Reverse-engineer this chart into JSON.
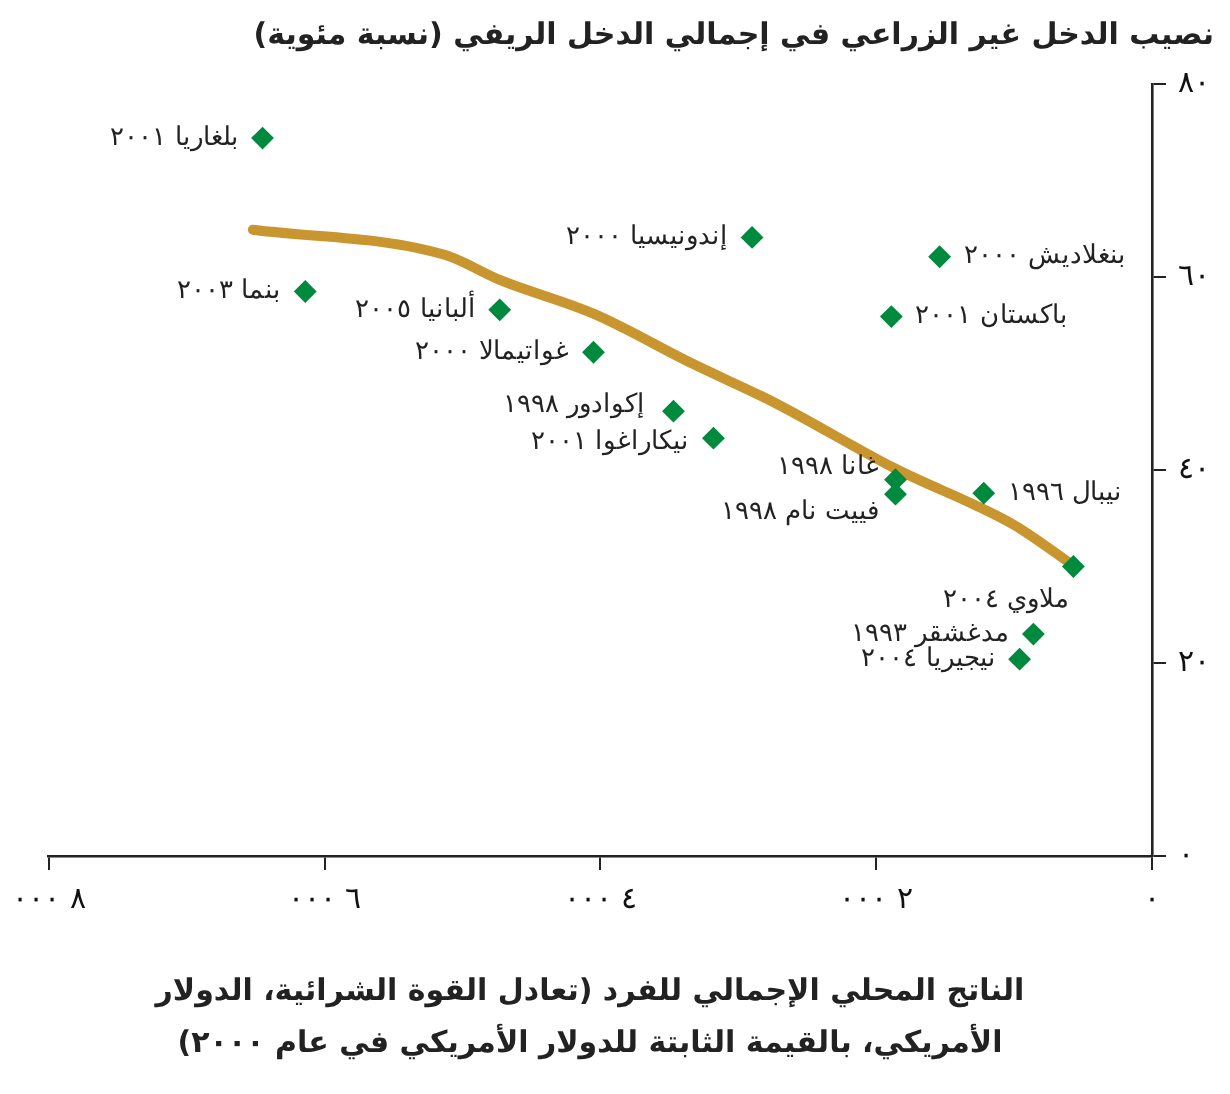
{
  "chart_data": {
    "type": "scatter",
    "ylabel": "نصيب الدخل غير الزراعي في إجمالي الدخل الريفي (نسبة مئوية)",
    "xlabel": "الناتج المحلي الإجمالي للفرد (تعادل القوة الشرائية، الدولار الأمريكي، بالقيمة الثابتة للدولار الأمريكي في عام ٢٠٠٠)",
    "xlim": [
      8000,
      0
    ],
    "xticks": [
      {
        "value": 8000,
        "label": "٨ ٠٠٠"
      },
      {
        "value": 6000,
        "label": "٦ ٠٠٠"
      },
      {
        "value": 4000,
        "label": "٤ ٠٠٠"
      },
      {
        "value": 2000,
        "label": "٢ ٠٠٠"
      },
      {
        "value": 0,
        "label": "٠"
      }
    ],
    "ylim": [
      0,
      80
    ],
    "yticks": [
      {
        "value": 0,
        "label": "٠"
      },
      {
        "value": 20,
        "label": "٢٠"
      },
      {
        "value": 40,
        "label": "٤٠"
      },
      {
        "value": 60,
        "label": "٦٠"
      },
      {
        "value": 80,
        "label": "٨٠"
      }
    ],
    "grid": false,
    "legend": false,
    "marker": "diamond",
    "series": [
      {
        "type": "line",
        "marker": "none",
        "color": "#c8952f",
        "x": [
          6520,
          5130,
          4730,
          4050,
          3330,
          2740,
          1870,
          1000,
          570
        ],
        "values": [
          64.9,
          62.3,
          59.7,
          56.2,
          51.0,
          47.0,
          40.2,
          34.3,
          30.1
        ]
      },
      {
        "color": "#008a3e",
        "x": [
          6450,
          2900,
          1540,
          6140,
          4730,
          1890,
          4050,
          3470,
          3180,
          1860,
          1860,
          1220,
          570,
          860,
          960
        ],
        "values": [
          74.4,
          64.1,
          62.1,
          58.5,
          56.6,
          55.9,
          52.2,
          46.1,
          43.3,
          39.0,
          37.5,
          37.6,
          30.0,
          23.0,
          20.4
        ]
      }
    ],
    "annotations": [
      {
        "text": "بلغاريا ٢٠٠١",
        "x": 6450,
        "y": 74.4
      },
      {
        "text": "إندونيسيا ٢٠٠٠",
        "x": 2900,
        "y": 64.1
      },
      {
        "text": "بنغلاديش ٢٠٠٠",
        "x": 1540,
        "y": 62.1
      },
      {
        "text": "بنما ٢٠٠٣",
        "x": 6140,
        "y": 58.5
      },
      {
        "text": "ألبانيا ٢٠٠٥",
        "x": 4730,
        "y": 56.6
      },
      {
        "text": "باكستان ٢٠٠١",
        "x": 1890,
        "y": 55.9
      },
      {
        "text": "غواتيمالا ٢٠٠٠",
        "x": 4050,
        "y": 52.2
      },
      {
        "text": "إكوادور ١٩٩٨",
        "x": 3470,
        "y": 46.1
      },
      {
        "text": "نيكاراغوا ٢٠٠١",
        "x": 3180,
        "y": 43.3
      },
      {
        "text": "غانا ١٩٩٨",
        "x": 1860,
        "y": 39.0
      },
      {
        "text": "فييت نام ١٩٩٨",
        "x": 1860,
        "y": 37.5
      },
      {
        "text": "نيبال ١٩٩٦",
        "x": 1220,
        "y": 37.6
      },
      {
        "text": "ملاوي ٢٠٠٤",
        "x": 570,
        "y": 30.0
      },
      {
        "text": "مدغشقر ١٩٩٣",
        "x": 860,
        "y": 23.0
      },
      {
        "text": "نيجيريا ٢٠٠٤",
        "x": 960,
        "y": 20.4
      }
    ]
  }
}
